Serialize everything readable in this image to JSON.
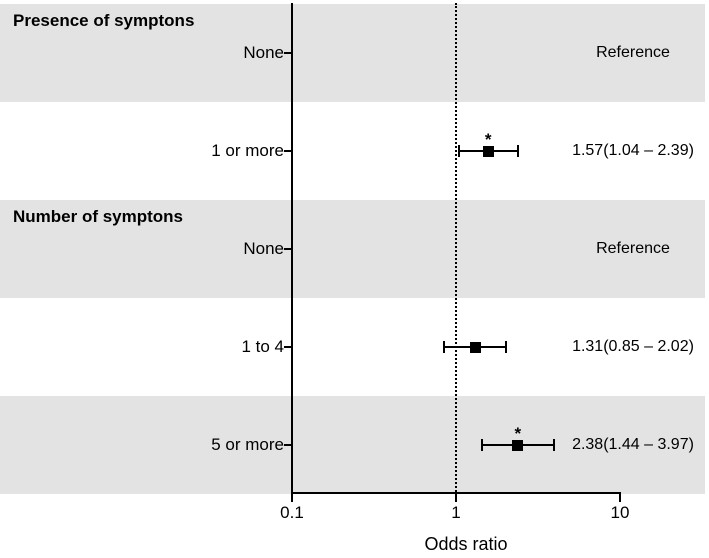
{
  "chart_data": {
    "type": "forest",
    "title": "",
    "xlabel": "Odds ratio",
    "x_axis": {
      "scale": "log",
      "min": 0.1,
      "max": 10,
      "ticks": [
        {
          "value": 0.1,
          "label": "0.1"
        },
        {
          "value": 1,
          "label": "1"
        },
        {
          "value": 10,
          "label": "10"
        }
      ]
    },
    "reference_line_x": 1,
    "significance_marker": "*",
    "legend": null,
    "grid": false,
    "rows": [
      {
        "section_header": "Presence of symptons",
        "label": "None",
        "value_label": "Reference",
        "estimate": null,
        "ci_low": null,
        "ci_high": null,
        "significant": false,
        "shaded": true
      },
      {
        "section_header": null,
        "label": "1 or more",
        "value_label": "1.57(1.04 – 2.39)",
        "estimate": 1.57,
        "ci_low": 1.04,
        "ci_high": 2.39,
        "significant": true,
        "shaded": false
      },
      {
        "section_header": "Number of symptons",
        "label": "None",
        "value_label": "Reference",
        "estimate": null,
        "ci_low": null,
        "ci_high": null,
        "significant": false,
        "shaded": true
      },
      {
        "section_header": null,
        "label": "1 to 4",
        "value_label": "1.31(0.85 – 2.02)",
        "estimate": 1.31,
        "ci_low": 0.85,
        "ci_high": 2.02,
        "significant": false,
        "shaded": false
      },
      {
        "section_header": null,
        "label": "5 or more",
        "value_label": "2.38(1.44 – 3.97)",
        "estimate": 2.38,
        "ci_low": 1.44,
        "ci_high": 3.97,
        "significant": true,
        "shaded": true
      }
    ]
  },
  "colors": {
    "band": "#e3e3e3",
    "line": "#000000",
    "marker": "#000000",
    "background": "#ffffff"
  }
}
